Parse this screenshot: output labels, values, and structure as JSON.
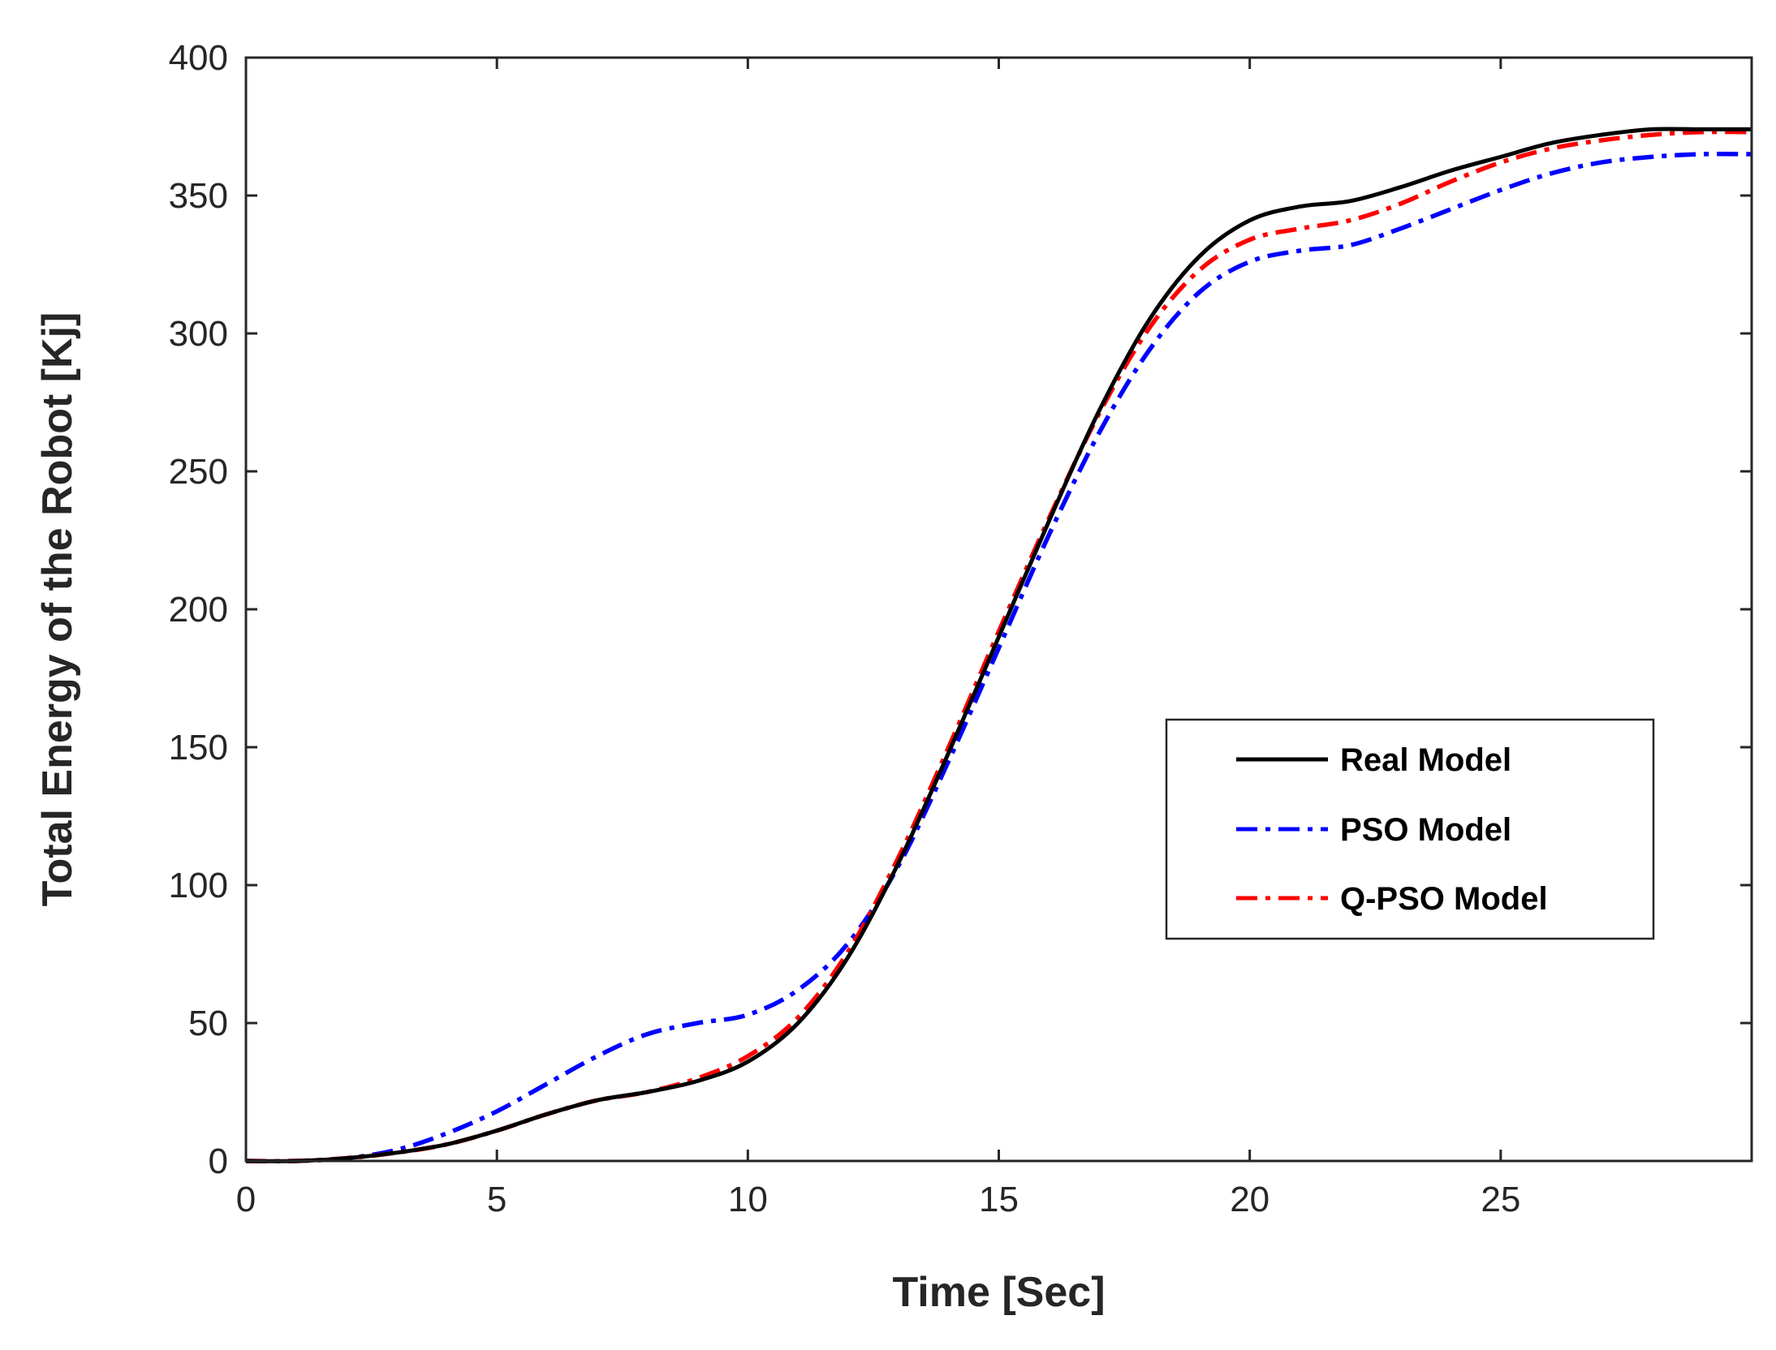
{
  "chart_data": {
    "type": "line",
    "title": "",
    "xlabel": "Time [Sec]",
    "ylabel": "Total Energy of the Robot [Kj]",
    "xlim": [
      0,
      30
    ],
    "ylim": [
      0,
      400
    ],
    "xticks": [
      0,
      5,
      10,
      15,
      20,
      25
    ],
    "yticks": [
      0,
      50,
      100,
      150,
      200,
      250,
      300,
      350,
      400
    ],
    "grid": false,
    "legend_position": "center-right",
    "x": [
      0,
      1,
      2,
      3,
      4,
      5,
      6,
      7,
      8,
      9,
      10,
      11,
      12,
      13,
      14,
      15,
      16,
      17,
      18,
      19,
      20,
      21,
      22,
      23,
      24,
      25,
      26,
      27,
      28,
      29,
      30
    ],
    "series": [
      {
        "name": "Real Model",
        "color": "#000000",
        "style": "solid",
        "values": [
          0,
          0,
          1,
          3,
          6,
          11,
          17,
          22,
          25,
          29,
          36,
          50,
          74,
          108,
          148,
          190,
          232,
          272,
          305,
          328,
          341,
          346,
          348,
          353,
          359,
          364,
          369,
          372,
          374,
          374,
          374
        ]
      },
      {
        "name": "PSO Model",
        "color": "#0000ff",
        "style": "dashdot",
        "values": [
          0,
          0,
          1,
          4,
          10,
          18,
          28,
          38,
          46,
          50,
          53,
          62,
          79,
          107,
          145,
          186,
          227,
          264,
          294,
          315,
          326,
          330,
          332,
          338,
          345,
          352,
          358,
          362,
          364,
          365,
          365
        ]
      },
      {
        "name": "Q-PSO Model",
        "color": "#ff0000",
        "style": "dashdot",
        "values": [
          0,
          0,
          1,
          3,
          6,
          11,
          17,
          22,
          25,
          30,
          38,
          52,
          76,
          110,
          150,
          192,
          233,
          271,
          302,
          323,
          334,
          338,
          341,
          347,
          355,
          362,
          367,
          370,
          372,
          373,
          373
        ]
      }
    ]
  }
}
